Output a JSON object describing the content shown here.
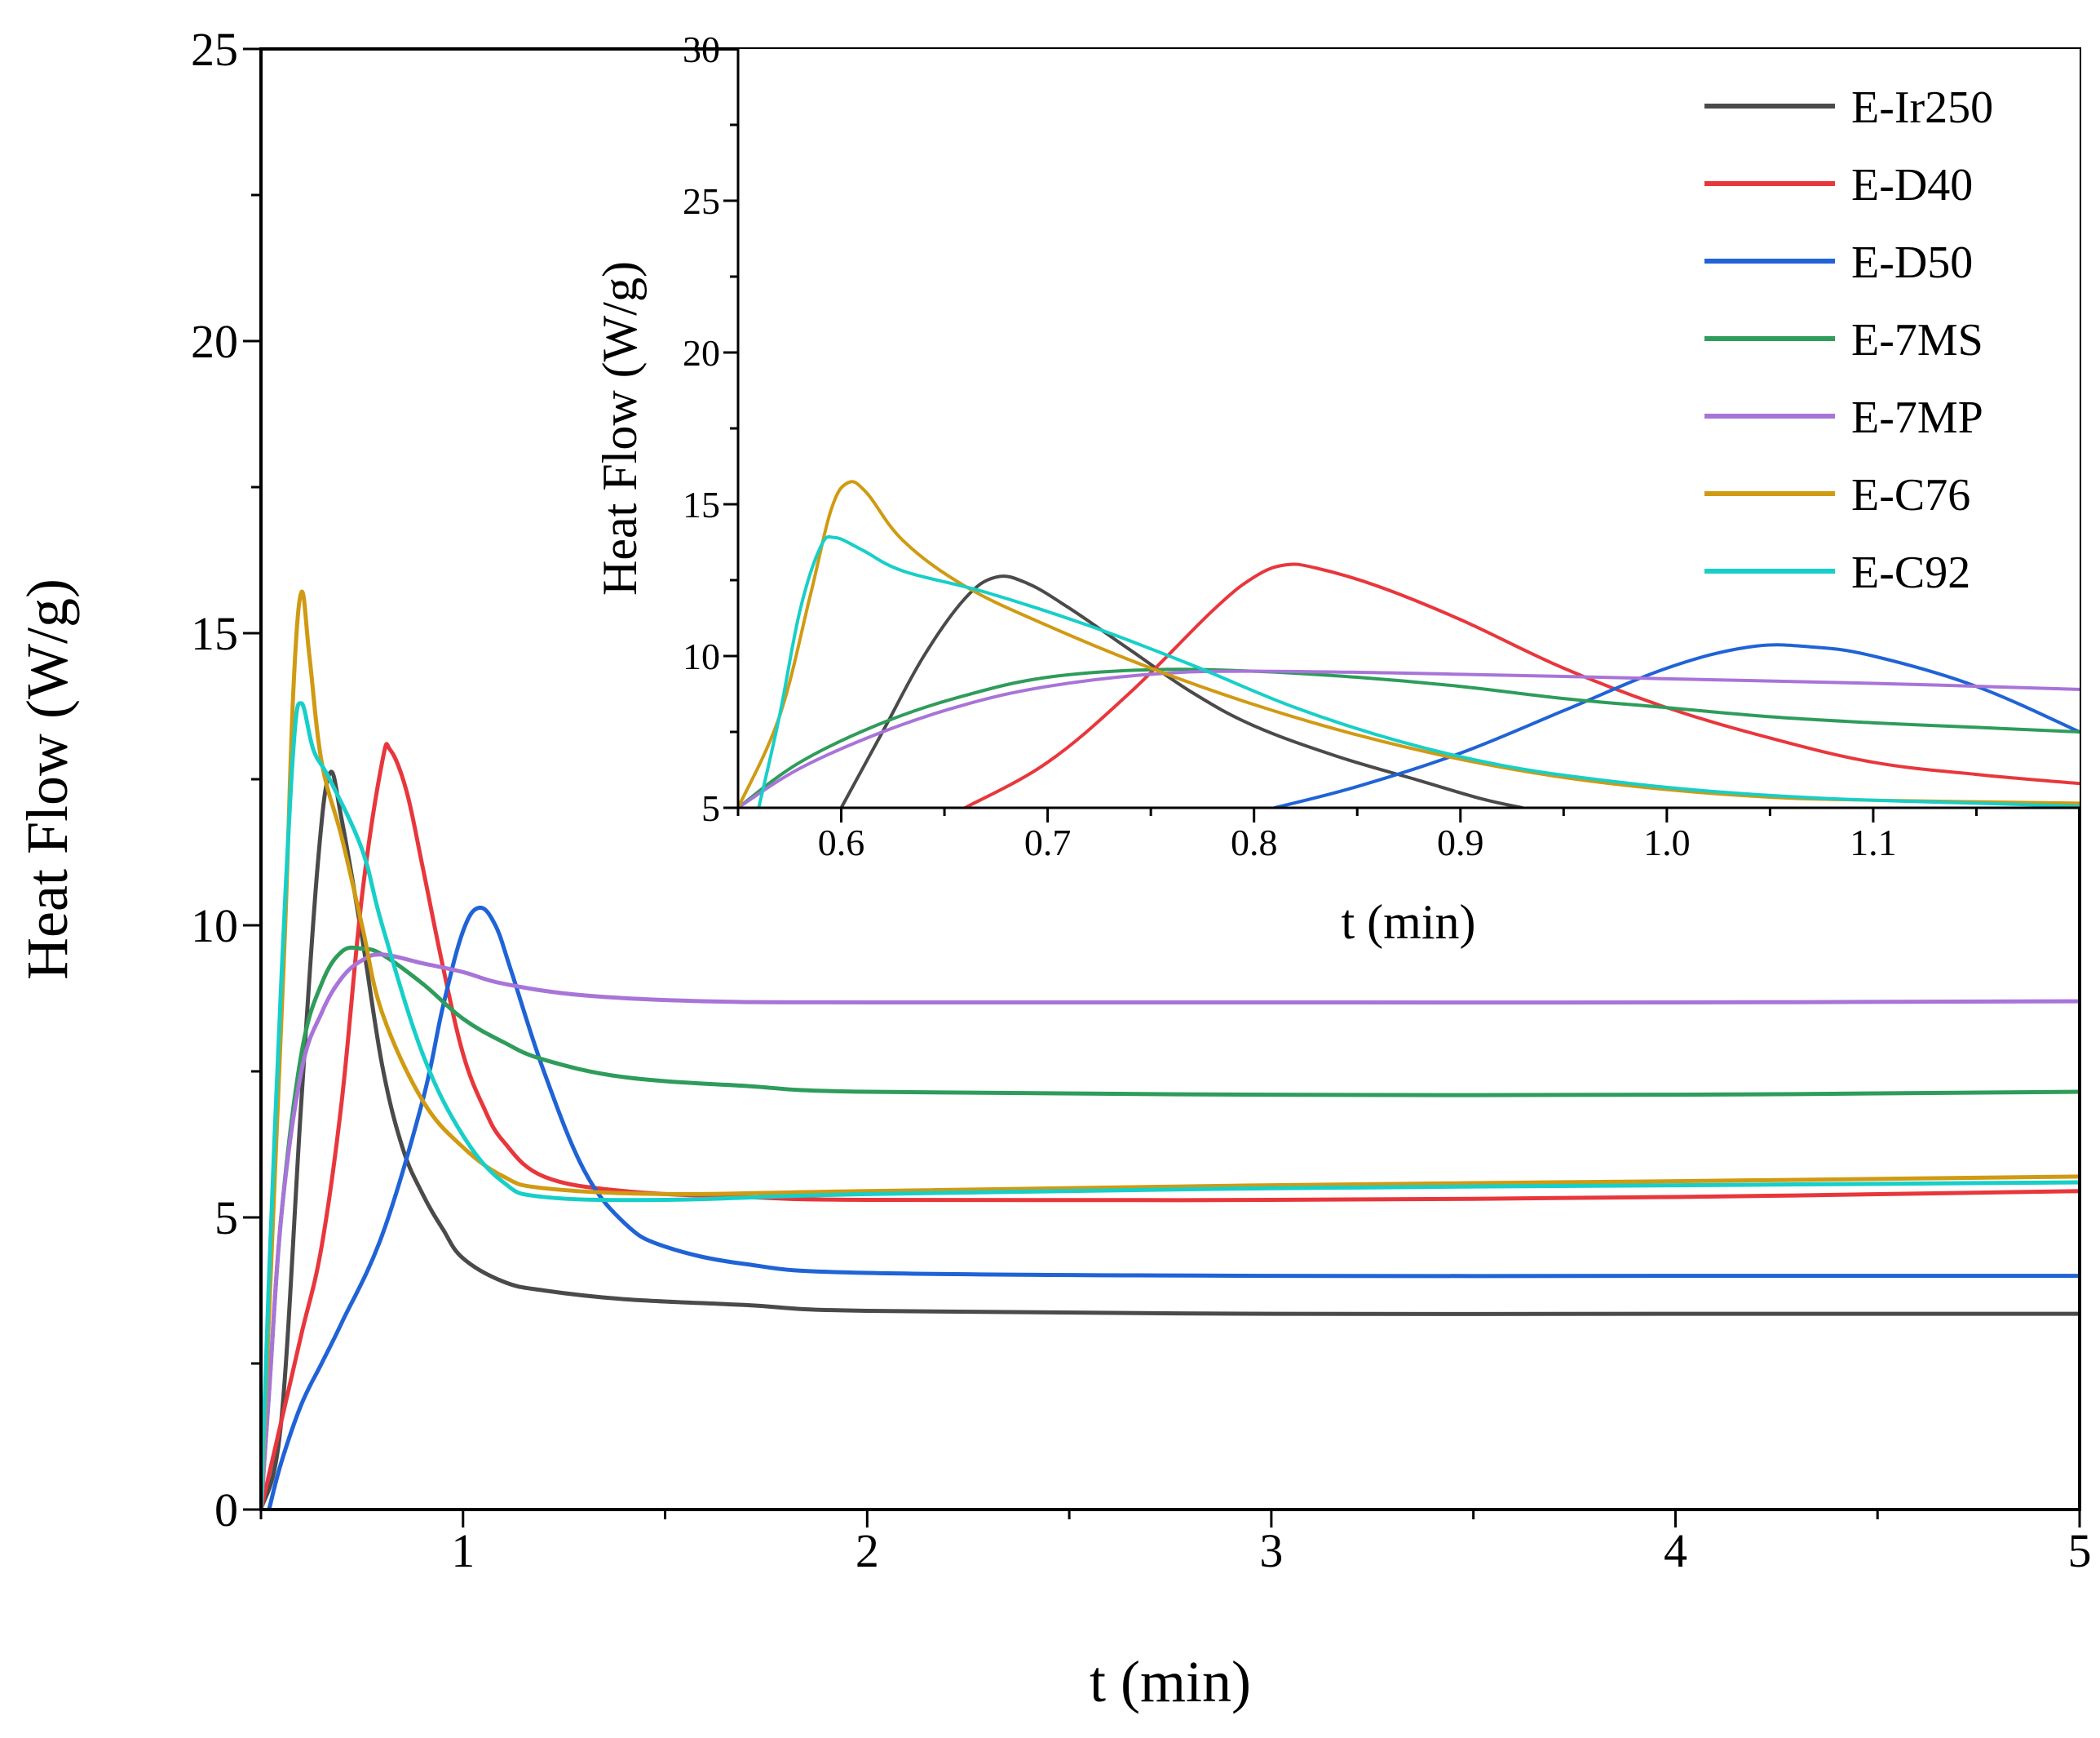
{
  "chart_data": [
    {
      "id": "main",
      "type": "line",
      "title": "",
      "xlabel": "t (min)",
      "ylabel": "Heat Flow (W/g)",
      "xlim": [
        0.5,
        5
      ],
      "ylim": [
        0,
        25
      ],
      "xticks": [
        1,
        2,
        3,
        4,
        5
      ],
      "xtick_labels": [
        "1",
        "2",
        "3",
        "4",
        "5"
      ],
      "yticks": [
        0,
        5,
        10,
        15,
        20,
        25
      ],
      "ytick_labels": [
        "0",
        "5",
        "10",
        "15",
        "20",
        "25"
      ],
      "grid": false,
      "series": [
        {
          "name": "E-Ir250",
          "color": "#4a4a4a",
          "points": [
            [
              0.5,
              0
            ],
            [
              0.55,
              1.5
            ],
            [
              0.6,
              7.0
            ],
            [
              0.64,
              11.0
            ],
            [
              0.67,
              12.6
            ],
            [
              0.7,
              11.8
            ],
            [
              0.75,
              9.8
            ],
            [
              0.8,
              7.6
            ],
            [
              0.85,
              6.2
            ],
            [
              0.9,
              5.4
            ],
            [
              0.95,
              4.8
            ],
            [
              1.0,
              4.3
            ],
            [
              1.1,
              3.9
            ],
            [
              1.2,
              3.75
            ],
            [
              1.4,
              3.6
            ],
            [
              1.7,
              3.5
            ],
            [
              2.0,
              3.4
            ],
            [
              3.0,
              3.35
            ],
            [
              4.0,
              3.35
            ],
            [
              5.0,
              3.35
            ]
          ]
        },
        {
          "name": "E-D40",
          "color": "#e8373c",
          "points": [
            [
              0.5,
              0
            ],
            [
              0.55,
              1.5
            ],
            [
              0.6,
              3.0
            ],
            [
              0.65,
              4.5
            ],
            [
              0.7,
              7.0
            ],
            [
              0.75,
              10.5
            ],
            [
              0.8,
              12.8
            ],
            [
              0.82,
              13.0
            ],
            [
              0.86,
              12.3
            ],
            [
              0.9,
              11.0
            ],
            [
              0.95,
              9.3
            ],
            [
              1.0,
              7.8
            ],
            [
              1.05,
              6.9
            ],
            [
              1.1,
              6.3
            ],
            [
              1.2,
              5.7
            ],
            [
              1.4,
              5.45
            ],
            [
              1.7,
              5.35
            ],
            [
              2.0,
              5.3
            ],
            [
              3.0,
              5.3
            ],
            [
              4.0,
              5.35
            ],
            [
              5.0,
              5.45
            ]
          ]
        },
        {
          "name": "E-D50",
          "color": "#1f63d6",
          "points": [
            [
              0.52,
              0
            ],
            [
              0.55,
              0.8
            ],
            [
              0.6,
              1.8
            ],
            [
              0.65,
              2.5
            ],
            [
              0.7,
              3.2
            ],
            [
              0.8,
              4.7
            ],
            [
              0.9,
              7.0
            ],
            [
              0.95,
              8.6
            ],
            [
              1.0,
              9.9
            ],
            [
              1.04,
              10.3
            ],
            [
              1.08,
              10.0
            ],
            [
              1.12,
              9.2
            ],
            [
              1.2,
              7.5
            ],
            [
              1.3,
              5.8
            ],
            [
              1.4,
              4.9
            ],
            [
              1.5,
              4.5
            ],
            [
              1.7,
              4.2
            ],
            [
              2.0,
              4.05
            ],
            [
              3.0,
              4.0
            ],
            [
              4.0,
              4.0
            ],
            [
              5.0,
              4.0
            ]
          ]
        },
        {
          "name": "E-7MS",
          "color": "#2e9c5a",
          "points": [
            [
              0.5,
              0
            ],
            [
              0.52,
              2.0
            ],
            [
              0.55,
              5.0
            ],
            [
              0.6,
              7.8
            ],
            [
              0.65,
              9.0
            ],
            [
              0.7,
              9.55
            ],
            [
              0.75,
              9.6
            ],
            [
              0.8,
              9.5
            ],
            [
              0.9,
              9.0
            ],
            [
              1.0,
              8.4
            ],
            [
              1.1,
              8.0
            ],
            [
              1.2,
              7.7
            ],
            [
              1.4,
              7.4
            ],
            [
              1.7,
              7.25
            ],
            [
              2.0,
              7.15
            ],
            [
              3.0,
              7.1
            ],
            [
              4.0,
              7.1
            ],
            [
              5.0,
              7.15
            ]
          ]
        },
        {
          "name": "E-7MP",
          "color": "#a874d8",
          "points": [
            [
              0.5,
              0
            ],
            [
              0.52,
              2.0
            ],
            [
              0.55,
              5.0
            ],
            [
              0.6,
              7.5
            ],
            [
              0.65,
              8.5
            ],
            [
              0.7,
              9.1
            ],
            [
              0.75,
              9.4
            ],
            [
              0.8,
              9.5
            ],
            [
              0.9,
              9.35
            ],
            [
              1.0,
              9.2
            ],
            [
              1.1,
              9.0
            ],
            [
              1.3,
              8.8
            ],
            [
              1.6,
              8.7
            ],
            [
              2.0,
              8.68
            ],
            [
              3.0,
              8.68
            ],
            [
              4.0,
              8.68
            ],
            [
              5.0,
              8.7
            ]
          ]
        },
        {
          "name": "E-C76",
          "color": "#d09a12",
          "points": [
            [
              0.5,
              0
            ],
            [
              0.53,
              5.0
            ],
            [
              0.56,
              10.0
            ],
            [
              0.58,
              14.0
            ],
            [
              0.6,
              15.7
            ],
            [
              0.62,
              14.6
            ],
            [
              0.65,
              12.8
            ],
            [
              0.7,
              11.5
            ],
            [
              0.75,
              10.0
            ],
            [
              0.8,
              8.5
            ],
            [
              0.9,
              7.0
            ],
            [
              1.0,
              6.2
            ],
            [
              1.1,
              5.7
            ],
            [
              1.2,
              5.5
            ],
            [
              1.5,
              5.4
            ],
            [
              2.0,
              5.45
            ],
            [
              3.0,
              5.55
            ],
            [
              4.0,
              5.62
            ],
            [
              5.0,
              5.7
            ]
          ]
        },
        {
          "name": "E-C92",
          "color": "#17cfc8",
          "points": [
            [
              0.5,
              0
            ],
            [
              0.52,
              4.0
            ],
            [
              0.55,
              9.0
            ],
            [
              0.58,
              13.0
            ],
            [
              0.6,
              13.8
            ],
            [
              0.63,
              13.0
            ],
            [
              0.67,
              12.5
            ],
            [
              0.75,
              11.3
            ],
            [
              0.8,
              10.0
            ],
            [
              0.9,
              7.8
            ],
            [
              1.0,
              6.4
            ],
            [
              1.1,
              5.6
            ],
            [
              1.2,
              5.35
            ],
            [
              1.5,
              5.3
            ],
            [
              2.0,
              5.4
            ],
            [
              3.0,
              5.5
            ],
            [
              4.0,
              5.55
            ],
            [
              5.0,
              5.6
            ]
          ]
        }
      ]
    },
    {
      "id": "inset",
      "type": "line",
      "title": "",
      "xlabel": "t (min)",
      "ylabel": "Heat Flow (W/g)",
      "xlim": [
        0.55,
        1.2
      ],
      "ylim": [
        5,
        30
      ],
      "xticks": [
        0.6,
        0.7,
        0.8,
        0.9,
        1.0,
        1.1
      ],
      "xtick_labels": [
        "0.6",
        "0.7",
        "0.8",
        "0.9",
        "1.0",
        "1.1"
      ],
      "yticks": [
        5,
        10,
        15,
        20,
        25,
        30
      ],
      "ytick_labels": [
        "5",
        "10",
        "15",
        "20",
        "25",
        "30"
      ],
      "grid": false,
      "legend": "top-right",
      "legend_entries": [
        "E-Ir250",
        "E-D40",
        "E-D50",
        "E-7MS",
        "E-7MP",
        "E-C76",
        "E-C92"
      ],
      "series": [
        {
          "name": "E-Ir250",
          "color": "#4a4a4a",
          "points": [
            [
              0.6,
              5.0
            ],
            [
              0.62,
              7.5
            ],
            [
              0.64,
              10.0
            ],
            [
              0.66,
              11.9
            ],
            [
              0.675,
              12.6
            ],
            [
              0.69,
              12.4
            ],
            [
              0.71,
              11.6
            ],
            [
              0.74,
              10.2
            ],
            [
              0.77,
              8.8
            ],
            [
              0.8,
              7.7
            ],
            [
              0.84,
              6.7
            ],
            [
              0.88,
              5.9
            ],
            [
              0.91,
              5.3
            ],
            [
              0.93,
              5.0
            ]
          ]
        },
        {
          "name": "E-D40",
          "color": "#e8373c",
          "points": [
            [
              0.66,
              5.0
            ],
            [
              0.7,
              6.5
            ],
            [
              0.74,
              8.8
            ],
            [
              0.78,
              11.5
            ],
            [
              0.8,
              12.6
            ],
            [
              0.815,
              13.0
            ],
            [
              0.83,
              12.9
            ],
            [
              0.86,
              12.3
            ],
            [
              0.9,
              11.2
            ],
            [
              0.95,
              9.6
            ],
            [
              1.0,
              8.3
            ],
            [
              1.05,
              7.3
            ],
            [
              1.1,
              6.5
            ],
            [
              1.15,
              6.1
            ],
            [
              1.2,
              5.8
            ]
          ]
        },
        {
          "name": "E-D50",
          "color": "#1f63d6",
          "points": [
            [
              0.81,
              5.0
            ],
            [
              0.85,
              5.7
            ],
            [
              0.9,
              6.8
            ],
            [
              0.95,
              8.2
            ],
            [
              1.0,
              9.6
            ],
            [
              1.04,
              10.3
            ],
            [
              1.07,
              10.3
            ],
            [
              1.1,
              10.0
            ],
            [
              1.15,
              9.0
            ],
            [
              1.2,
              7.5
            ]
          ]
        },
        {
          "name": "E-7MS",
          "color": "#2e9c5a",
          "points": [
            [
              0.55,
              5.0
            ],
            [
              0.58,
              6.5
            ],
            [
              0.62,
              7.8
            ],
            [
              0.66,
              8.7
            ],
            [
              0.7,
              9.3
            ],
            [
              0.75,
              9.55
            ],
            [
              0.8,
              9.5
            ],
            [
              0.85,
              9.3
            ],
            [
              0.9,
              9.0
            ],
            [
              0.95,
              8.6
            ],
            [
              1.0,
              8.3
            ],
            [
              1.05,
              8.0
            ],
            [
              1.1,
              7.8
            ],
            [
              1.15,
              7.65
            ],
            [
              1.2,
              7.5
            ]
          ]
        },
        {
          "name": "E-7MP",
          "color": "#a874d8",
          "points": [
            [
              0.55,
              5.0
            ],
            [
              0.58,
              6.3
            ],
            [
              0.62,
              7.5
            ],
            [
              0.66,
              8.4
            ],
            [
              0.7,
              9.0
            ],
            [
              0.75,
              9.4
            ],
            [
              0.8,
              9.5
            ],
            [
              0.9,
              9.4
            ],
            [
              1.0,
              9.25
            ],
            [
              1.1,
              9.1
            ],
            [
              1.2,
              8.9
            ]
          ]
        },
        {
          "name": "E-C76",
          "color": "#d09a12",
          "points": [
            [
              0.55,
              5.0
            ],
            [
              0.57,
              8.0
            ],
            [
              0.585,
              12.0
            ],
            [
              0.595,
              14.8
            ],
            [
              0.603,
              15.7
            ],
            [
              0.612,
              15.4
            ],
            [
              0.63,
              13.8
            ],
            [
              0.66,
              12.3
            ],
            [
              0.7,
              11.0
            ],
            [
              0.75,
              9.6
            ],
            [
              0.8,
              8.4
            ],
            [
              0.85,
              7.4
            ],
            [
              0.9,
              6.6
            ],
            [
              0.95,
              6.0
            ],
            [
              1.0,
              5.6
            ],
            [
              1.05,
              5.35
            ],
            [
              1.1,
              5.25
            ],
            [
              1.2,
              5.15
            ]
          ]
        },
        {
          "name": "E-C92",
          "color": "#17cfc8",
          "points": [
            [
              0.56,
              5.0
            ],
            [
              0.57,
              8.0
            ],
            [
              0.58,
              11.5
            ],
            [
              0.59,
              13.6
            ],
            [
              0.597,
              13.9
            ],
            [
              0.61,
              13.5
            ],
            [
              0.63,
              12.8
            ],
            [
              0.67,
              12.1
            ],
            [
              0.72,
              11.0
            ],
            [
              0.77,
              9.7
            ],
            [
              0.82,
              8.3
            ],
            [
              0.87,
              7.2
            ],
            [
              0.92,
              6.4
            ],
            [
              0.97,
              5.9
            ],
            [
              1.02,
              5.55
            ],
            [
              1.08,
              5.3
            ],
            [
              1.15,
              5.15
            ],
            [
              1.2,
              5.05
            ]
          ]
        }
      ]
    }
  ]
}
